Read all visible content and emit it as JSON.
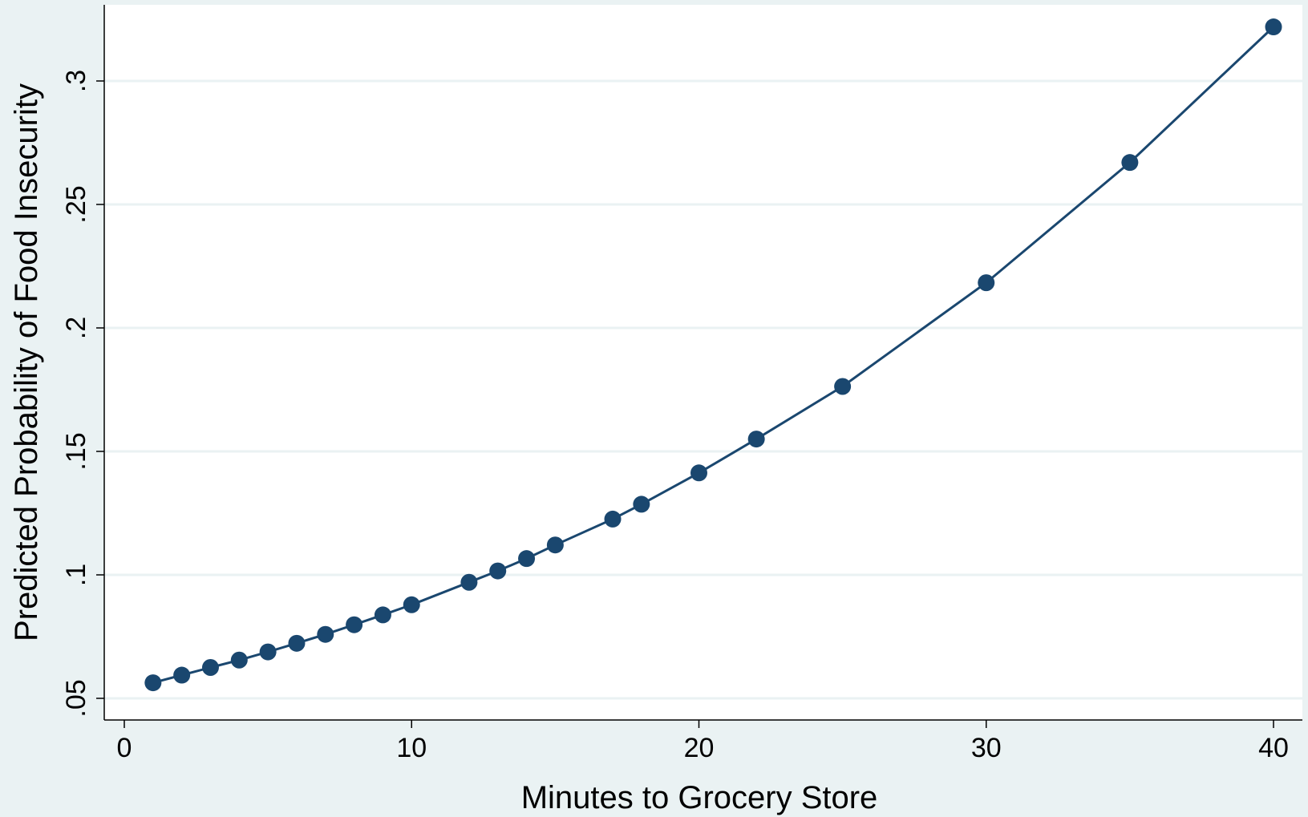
{
  "chart_data": {
    "type": "line",
    "title": "",
    "xlabel": "Minutes to Grocery Store",
    "ylabel": "Predicted Probability of Food Insecurity",
    "xlim": [
      0,
      40
    ],
    "ylim": [
      0.05,
      0.3
    ],
    "x_ticks": [
      {
        "value": 0,
        "label": "0"
      },
      {
        "value": 10,
        "label": "10"
      },
      {
        "value": 20,
        "label": "20"
      },
      {
        "value": 30,
        "label": "30"
      },
      {
        "value": 40,
        "label": "40"
      }
    ],
    "y_ticks": [
      {
        "value": 0.05,
        "label": ".05"
      },
      {
        "value": 0.1,
        "label": ".1"
      },
      {
        "value": 0.15,
        "label": ".15"
      },
      {
        "value": 0.2,
        "label": ".2"
      },
      {
        "value": 0.25,
        "label": ".25"
      },
      {
        "value": 0.3,
        "label": ".3"
      }
    ],
    "grid": true,
    "legend": "none",
    "series": [
      {
        "x": [
          1,
          2,
          3,
          4,
          5,
          6,
          7,
          8,
          9,
          10,
          12,
          13,
          14,
          15,
          17,
          18,
          20,
          22,
          25,
          30,
          35,
          40
        ],
        "y": [
          0.0563,
          0.0594,
          0.0625,
          0.0655,
          0.0688,
          0.0723,
          0.0759,
          0.0798,
          0.0838,
          0.0879,
          0.097,
          0.1016,
          0.1066,
          0.1121,
          0.1226,
          0.1286,
          0.1413,
          0.155,
          0.1763,
          0.2183,
          0.267,
          0.3219
        ]
      }
    ],
    "colors": {
      "line": "#1a476f",
      "marker": "#1a476f",
      "plot_bg": "#ffffff",
      "page_bg": "#eaf2f3",
      "grid": "#eaf2f3",
      "axis": "#000000"
    }
  }
}
